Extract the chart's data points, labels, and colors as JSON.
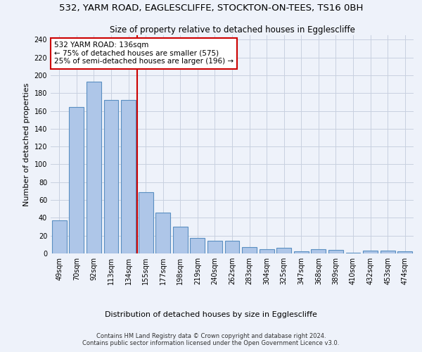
{
  "title_line1": "532, YARM ROAD, EAGLESCLIFFE, STOCKTON-ON-TEES, TS16 0BH",
  "title_line2": "Size of property relative to detached houses in Egglescliffe",
  "xlabel": "Distribution of detached houses by size in Egglescliffe",
  "ylabel": "Number of detached properties",
  "categories": [
    "49sqm",
    "70sqm",
    "92sqm",
    "113sqm",
    "134sqm",
    "155sqm",
    "177sqm",
    "198sqm",
    "219sqm",
    "240sqm",
    "262sqm",
    "283sqm",
    "304sqm",
    "325sqm",
    "347sqm",
    "368sqm",
    "389sqm",
    "410sqm",
    "432sqm",
    "453sqm",
    "474sqm"
  ],
  "values": [
    37,
    164,
    193,
    172,
    172,
    69,
    46,
    30,
    17,
    14,
    14,
    7,
    5,
    6,
    2,
    5,
    4,
    1,
    3,
    3,
    2
  ],
  "bar_color": "#aec6e8",
  "bar_edgecolor": "#5a8fc2",
  "bar_linewidth": 0.8,
  "vline_x": 4.5,
  "vline_color": "#cc0000",
  "annotation_line1": "532 YARM ROAD: 136sqm",
  "annotation_line2": "← 75% of detached houses are smaller (575)",
  "annotation_line3": "25% of semi-detached houses are larger (196) →",
  "annotation_box_color": "#ffffff",
  "annotation_box_edgecolor": "#cc0000",
  "ylim": [
    0,
    245
  ],
  "yticks": [
    0,
    20,
    40,
    60,
    80,
    100,
    120,
    140,
    160,
    180,
    200,
    220,
    240
  ],
  "grid_color": "#c8d0e0",
  "background_color": "#eef2fa",
  "footer_line1": "Contains HM Land Registry data © Crown copyright and database right 2024.",
  "footer_line2": "Contains public sector information licensed under the Open Government Licence v3.0.",
  "title_fontsize": 9.5,
  "subtitle_fontsize": 8.5,
  "ylabel_fontsize": 8,
  "xlabel_fontsize": 8,
  "tick_fontsize": 7,
  "annotation_fontsize": 7.5,
  "footer_fontsize": 6
}
